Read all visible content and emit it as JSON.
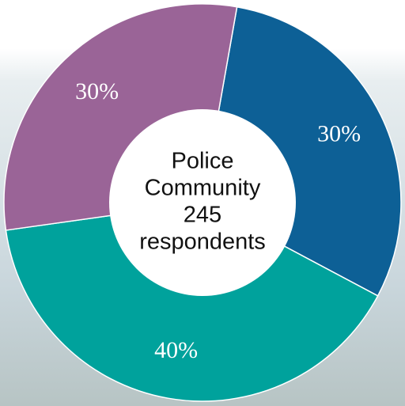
{
  "chart_data": {
    "type": "donut",
    "center_text": [
      "Police",
      "Community",
      "245",
      "respondents"
    ],
    "categories": [
      null,
      null,
      null
    ],
    "values": [
      30,
      40,
      30
    ],
    "value_labels": [
      "30%",
      "40%",
      "30%"
    ],
    "colors": [
      "#0d6096",
      "#00a29c",
      "#9a6497"
    ]
  }
}
